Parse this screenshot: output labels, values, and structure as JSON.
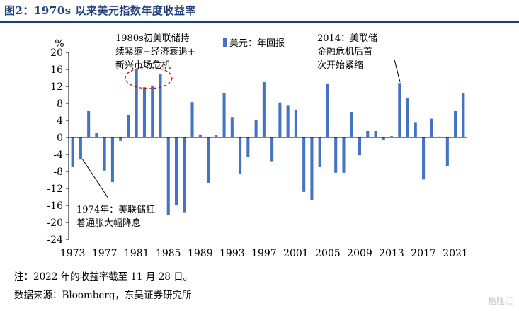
{
  "header": {
    "title": "图2：1970s 以来美元指数年度收益率"
  },
  "footer": {
    "note": "注：2022 年的收益率截至 11 月 28 日。",
    "source": "数据来源：Bloomberg，东吴证券研究所",
    "watermark": "格隆汇"
  },
  "colors": {
    "bar": "#4472c4",
    "accent": "#1f3f7a",
    "circle": "#c00000"
  },
  "chart_data": {
    "type": "bar",
    "title": "",
    "ylabel": "%",
    "xlabel": "",
    "ylim": [
      -24,
      20
    ],
    "yticks": [
      20,
      16,
      12,
      8,
      4,
      0,
      -4,
      -8,
      -12,
      -16,
      -20,
      -24
    ],
    "xtick_labels": [
      "1973",
      "1977",
      "1981",
      "1985",
      "1989",
      "1993",
      "1997",
      "2001",
      "2005",
      "2009",
      "2013",
      "2017",
      "2021"
    ],
    "legend": "美元：年回报",
    "categories": [
      "1973",
      "1974",
      "1975",
      "1976",
      "1977",
      "1978",
      "1979",
      "1980",
      "1981",
      "1982",
      "1983",
      "1984",
      "1985",
      "1986",
      "1987",
      "1988",
      "1989",
      "1990",
      "1991",
      "1992",
      "1993",
      "1994",
      "1995",
      "1996",
      "1997",
      "1998",
      "1999",
      "2000",
      "2001",
      "2002",
      "2003",
      "2004",
      "2005",
      "2006",
      "2007",
      "2008",
      "2009",
      "2010",
      "2011",
      "2012",
      "2013",
      "2014",
      "2015",
      "2016",
      "2017",
      "2018",
      "2019",
      "2020",
      "2021",
      "2022"
    ],
    "values": [
      -7.0,
      -5.2,
      6.3,
      1.0,
      -7.8,
      -10.5,
      -0.8,
      5.2,
      16.0,
      11.8,
      12.2,
      14.9,
      -18.3,
      -16.0,
      -17.6,
      8.3,
      0.7,
      -10.8,
      0.5,
      10.5,
      4.8,
      -8.5,
      -4.5,
      4.0,
      13.0,
      -5.6,
      8.2,
      7.6,
      6.5,
      -12.8,
      -14.7,
      -7.0,
      12.7,
      -8.3,
      -8.3,
      6.0,
      -4.2,
      1.5,
      1.5,
      -0.5,
      0.3,
      12.8,
      9.2,
      3.6,
      -9.9,
      4.4,
      0.2,
      -6.7,
      6.3,
      10.5
    ],
    "annotations": [
      {
        "lines": [
          "1980s初美联储持",
          "续紧缩+经济衰退+",
          "新兴市场危机"
        ]
      },
      {
        "lines": [
          "2014：美联储",
          "金融危机后首",
          "次开始紧缩"
        ]
      },
      {
        "lines": [
          "1974年：美联储扛",
          "着通胀大幅降息"
        ]
      }
    ]
  }
}
